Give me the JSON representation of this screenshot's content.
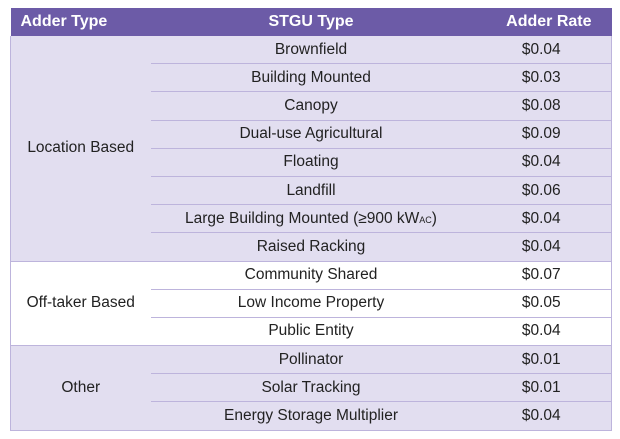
{
  "header": {
    "adder_type": "Adder Type",
    "stgu_type": "STGU Type",
    "adder_rate": "Adder Rate"
  },
  "colors": {
    "header": "#6c5ba7",
    "shade": "#e2def0",
    "border": "#bdb4dc"
  },
  "groups": [
    {
      "adder_type": "Location Based",
      "shaded": true,
      "rows": [
        {
          "stgu": "Brownfield",
          "rate": "$0.04"
        },
        {
          "stgu": "Building Mounted",
          "rate": "$0.03"
        },
        {
          "stgu": "Canopy",
          "rate": "$0.08"
        },
        {
          "stgu": "Dual-use Agricultural",
          "rate": "$0.09"
        },
        {
          "stgu": "Floating",
          "rate": "$0.04"
        },
        {
          "stgu": "Landfill",
          "rate": "$0.06"
        },
        {
          "stgu": "Large Building Mounted (≥900 kW",
          "stgu_sub": "AC",
          "stgu_tail": ")",
          "rate": "$0.04"
        },
        {
          "stgu": "Raised Racking",
          "rate": "$0.04"
        }
      ]
    },
    {
      "adder_type": "Off-taker Based",
      "shaded": false,
      "rows": [
        {
          "stgu": "Community Shared",
          "rate": "$0.07"
        },
        {
          "stgu": "Low Income Property",
          "rate": "$0.05"
        },
        {
          "stgu": "Public Entity",
          "rate": "$0.04"
        }
      ]
    },
    {
      "adder_type": "Other",
      "shaded": true,
      "rows": [
        {
          "stgu": "Pollinator",
          "rate": "$0.01"
        },
        {
          "stgu": "Solar Tracking",
          "rate": "$0.01"
        },
        {
          "stgu": "Energy Storage Multiplier",
          "rate": "$0.04"
        }
      ]
    }
  ]
}
